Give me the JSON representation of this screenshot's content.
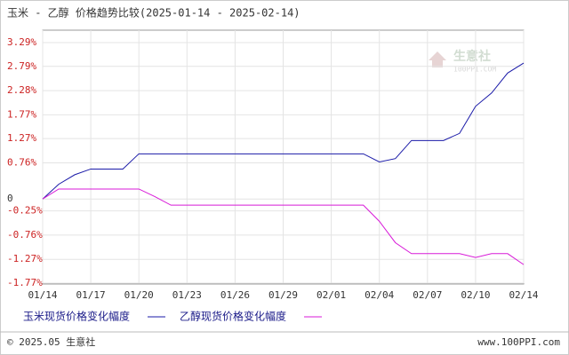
{
  "chart_data": {
    "type": "line",
    "title": "玉米 - 乙醇 价格趋势比较(2025-01-14 - 2025-02-14)",
    "categories": [
      "01/14",
      null,
      null,
      "01/17",
      null,
      null,
      "01/20",
      null,
      null,
      "01/23",
      null,
      null,
      "01/26",
      null,
      null,
      "01/29",
      null,
      null,
      "02/01",
      null,
      null,
      "02/04",
      null,
      null,
      "02/07",
      null,
      null,
      "02/10",
      null,
      null,
      "02/14"
    ],
    "series": [
      {
        "name": "玉米现货价格变化幅度",
        "color": "#1a1aa8",
        "values": [
          0,
          0.31,
          0.51,
          0.63,
          0.63,
          0.63,
          0.95,
          0.95,
          0.95,
          0.95,
          0.95,
          0.95,
          0.95,
          0.95,
          0.95,
          0.95,
          0.95,
          0.95,
          0.95,
          0.95,
          0.95,
          0.78,
          0.85,
          1.23,
          1.23,
          1.23,
          1.38,
          1.95,
          2.23,
          2.65,
          2.86
        ]
      },
      {
        "name": "乙醇现货价格变化幅度",
        "color": "#d81ad8",
        "values": [
          0,
          0.21,
          0.21,
          0.21,
          0.21,
          0.21,
          0.21,
          0.05,
          -0.13,
          -0.13,
          -0.13,
          -0.13,
          -0.13,
          -0.13,
          -0.13,
          -0.13,
          -0.13,
          -0.13,
          -0.13,
          -0.13,
          -0.13,
          -0.47,
          -0.92,
          -1.15,
          -1.15,
          -1.15,
          -1.15,
          -1.23,
          -1.15,
          -1.15,
          -1.38
        ]
      }
    ],
    "ylim": [
      -1.77,
      3.29
    ],
    "yticks": [
      {
        "value": 3.29,
        "label": "3.29%"
      },
      {
        "value": 2.79,
        "label": "2.79%"
      },
      {
        "value": 2.28,
        "label": "2.28%"
      },
      {
        "value": 1.77,
        "label": "1.77%"
      },
      {
        "value": 1.27,
        "label": "1.27%"
      },
      {
        "value": 0.76,
        "label": "0.76%"
      },
      0,
      {
        "value": -0.25,
        "label": "-0.25%"
      },
      {
        "value": -0.76,
        "label": "-0.76%"
      },
      {
        "value": -1.27,
        "label": "-1.27%"
      },
      {
        "value": -1.77,
        "label": "-1.77%"
      }
    ],
    "grid": true,
    "watermark": {
      "name": "生意社",
      "site": "100PPI.COM"
    },
    "footer": {
      "copyright": "© 2025.05 生意社",
      "url": "www.100PPI.com"
    }
  }
}
